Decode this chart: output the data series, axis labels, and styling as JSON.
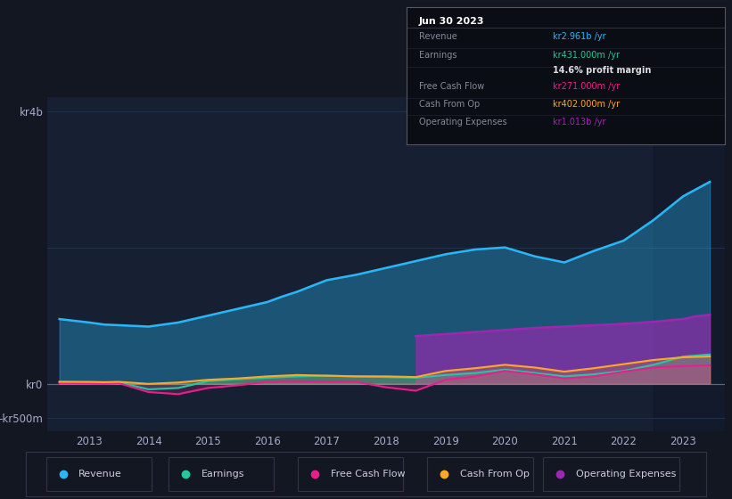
{
  "bg_color": "#131722",
  "plot_bg": "#162032",
  "title": "Jun 30 2023",
  "years": [
    2012.5,
    2013.0,
    2013.25,
    2013.5,
    2014.0,
    2014.5,
    2015.0,
    2015.5,
    2016.0,
    2016.25,
    2016.5,
    2017.0,
    2017.5,
    2018.0,
    2018.5,
    2019.0,
    2019.5,
    2020.0,
    2020.5,
    2021.0,
    2021.5,
    2022.0,
    2022.5,
    2023.0,
    2023.45
  ],
  "revenue": [
    950,
    900,
    870,
    860,
    840,
    900,
    1000,
    1100,
    1200,
    1280,
    1350,
    1520,
    1600,
    1700,
    1800,
    1900,
    1970,
    2000,
    1870,
    1780,
    1950,
    2100,
    2400,
    2750,
    2961
  ],
  "earnings": [
    30,
    20,
    10,
    20,
    -80,
    -60,
    40,
    70,
    90,
    100,
    110,
    120,
    110,
    100,
    90,
    130,
    160,
    210,
    160,
    110,
    140,
    190,
    280,
    400,
    431
  ],
  "free_cash_flow": [
    10,
    5,
    0,
    10,
    -120,
    -150,
    -60,
    -20,
    30,
    40,
    40,
    30,
    30,
    -50,
    -100,
    60,
    110,
    190,
    140,
    80,
    110,
    180,
    240,
    260,
    271
  ],
  "cash_from_op": [
    30,
    30,
    25,
    30,
    0,
    20,
    60,
    80,
    110,
    120,
    130,
    120,
    110,
    110,
    100,
    190,
    230,
    280,
    240,
    180,
    230,
    290,
    350,
    390,
    402
  ],
  "opex_start_year": 2018.5,
  "operating_expenses": [
    700,
    730,
    760,
    790,
    820,
    840,
    860,
    880,
    910,
    950,
    990,
    1013
  ],
  "opex_years": [
    2018.5,
    2019.0,
    2019.5,
    2020.0,
    2020.5,
    2021.0,
    2021.5,
    2022.0,
    2022.5,
    2023.0,
    2023.2,
    2023.45
  ],
  "revenue_color": "#29b6f6",
  "earnings_color": "#26c6a0",
  "fcf_color": "#e91e8c",
  "cfo_color": "#ffa726",
  "opex_color": "#9c27b0",
  "ylim_min": -700,
  "ylim_max": 4200,
  "ylabel_top": "kr4b",
  "ylabel_zero": "kr0",
  "ylabel_neg": "-kr500m",
  "ytick_vals": [
    4000,
    0,
    -500
  ],
  "xtick_years": [
    2013,
    2014,
    2015,
    2016,
    2017,
    2018,
    2019,
    2020,
    2021,
    2022,
    2023
  ],
  "info_box": {
    "title": "Jun 30 2023",
    "rows": [
      {
        "label": "Revenue",
        "value": "kr2.961b /yr",
        "color": "#29b6f6"
      },
      {
        "label": "Earnings",
        "value": "kr431.000m /yr",
        "color": "#26c6a0"
      },
      {
        "label": "",
        "value": "14.6% profit margin",
        "color": "#dddddd"
      },
      {
        "label": "Free Cash Flow",
        "value": "kr271.000m /yr",
        "color": "#e91e8c"
      },
      {
        "label": "Cash From Op",
        "value": "kr402.000m /yr",
        "color": "#ffa726"
      },
      {
        "label": "Operating Expenses",
        "value": "kr1.013b /yr",
        "color": "#9c27b0"
      }
    ]
  },
  "legend_items": [
    {
      "label": "Revenue",
      "color": "#29b6f6"
    },
    {
      "label": "Earnings",
      "color": "#26c6a0"
    },
    {
      "label": "Free Cash Flow",
      "color": "#e91e8c"
    },
    {
      "label": "Cash From Op",
      "color": "#ffa726"
    },
    {
      "label": "Operating Expenses",
      "color": "#9c27b0"
    }
  ],
  "grid_lines": [
    4000,
    2000,
    0,
    -500
  ],
  "grid_color": "#1f3050",
  "zero_line_color": "#8888aa"
}
